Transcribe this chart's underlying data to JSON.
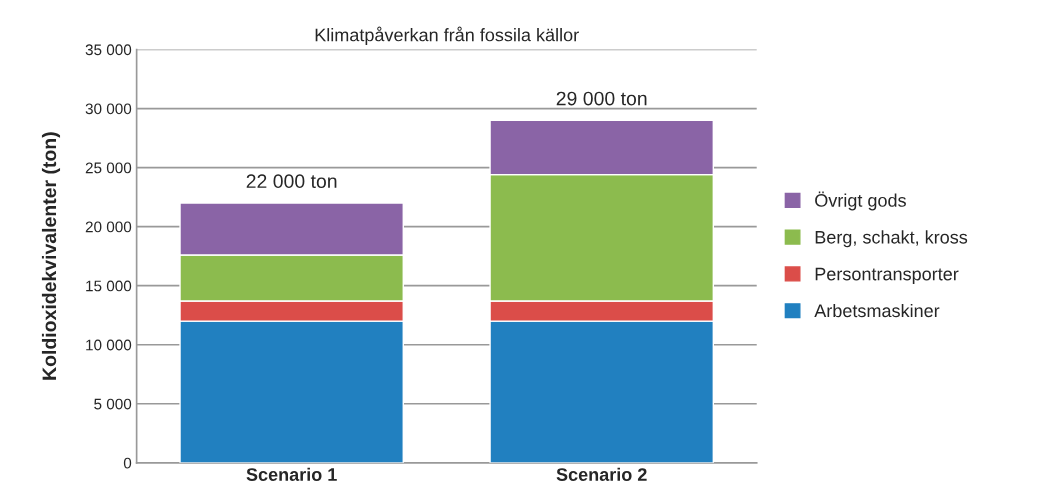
{
  "chart_data": {
    "type": "bar",
    "title": "Klimatpåverkan från fossila källor",
    "ylabel": "Koldioxidekvivalenter (ton)",
    "categories": [
      "Scenario 1",
      "Scenario 2"
    ],
    "stacked": true,
    "series": [
      {
        "name": "Arbetsmaskiner",
        "color": "#2180c0",
        "values": [
          12000,
          12000
        ]
      },
      {
        "name": "Persontransporter",
        "color": "#db4d49",
        "values": [
          1700,
          1700
        ]
      },
      {
        "name": "Berg, schakt, kross",
        "color": "#8cbb4e",
        "values": [
          3900,
          10700
        ]
      },
      {
        "name": "Övrigt gods",
        "color": "#8a64a6",
        "values": [
          4400,
          4600
        ]
      }
    ],
    "totals": [
      "22 000 ton",
      "29 000 ton"
    ],
    "ylim": [
      0,
      35000
    ],
    "yticks": [
      0,
      {
        "value": 5000,
        "label": "5 000"
      },
      {
        "value": 10000,
        "label": "10 000"
      },
      {
        "value": 15000,
        "label": "15 000"
      },
      {
        "value": 20000,
        "label": "20 000"
      },
      {
        "value": 25000,
        "label": "25 000"
      },
      {
        "value": 30000,
        "label": "30 000"
      },
      {
        "value": 35000,
        "label": "35 000"
      }
    ],
    "grid": "y",
    "legend": "right"
  }
}
